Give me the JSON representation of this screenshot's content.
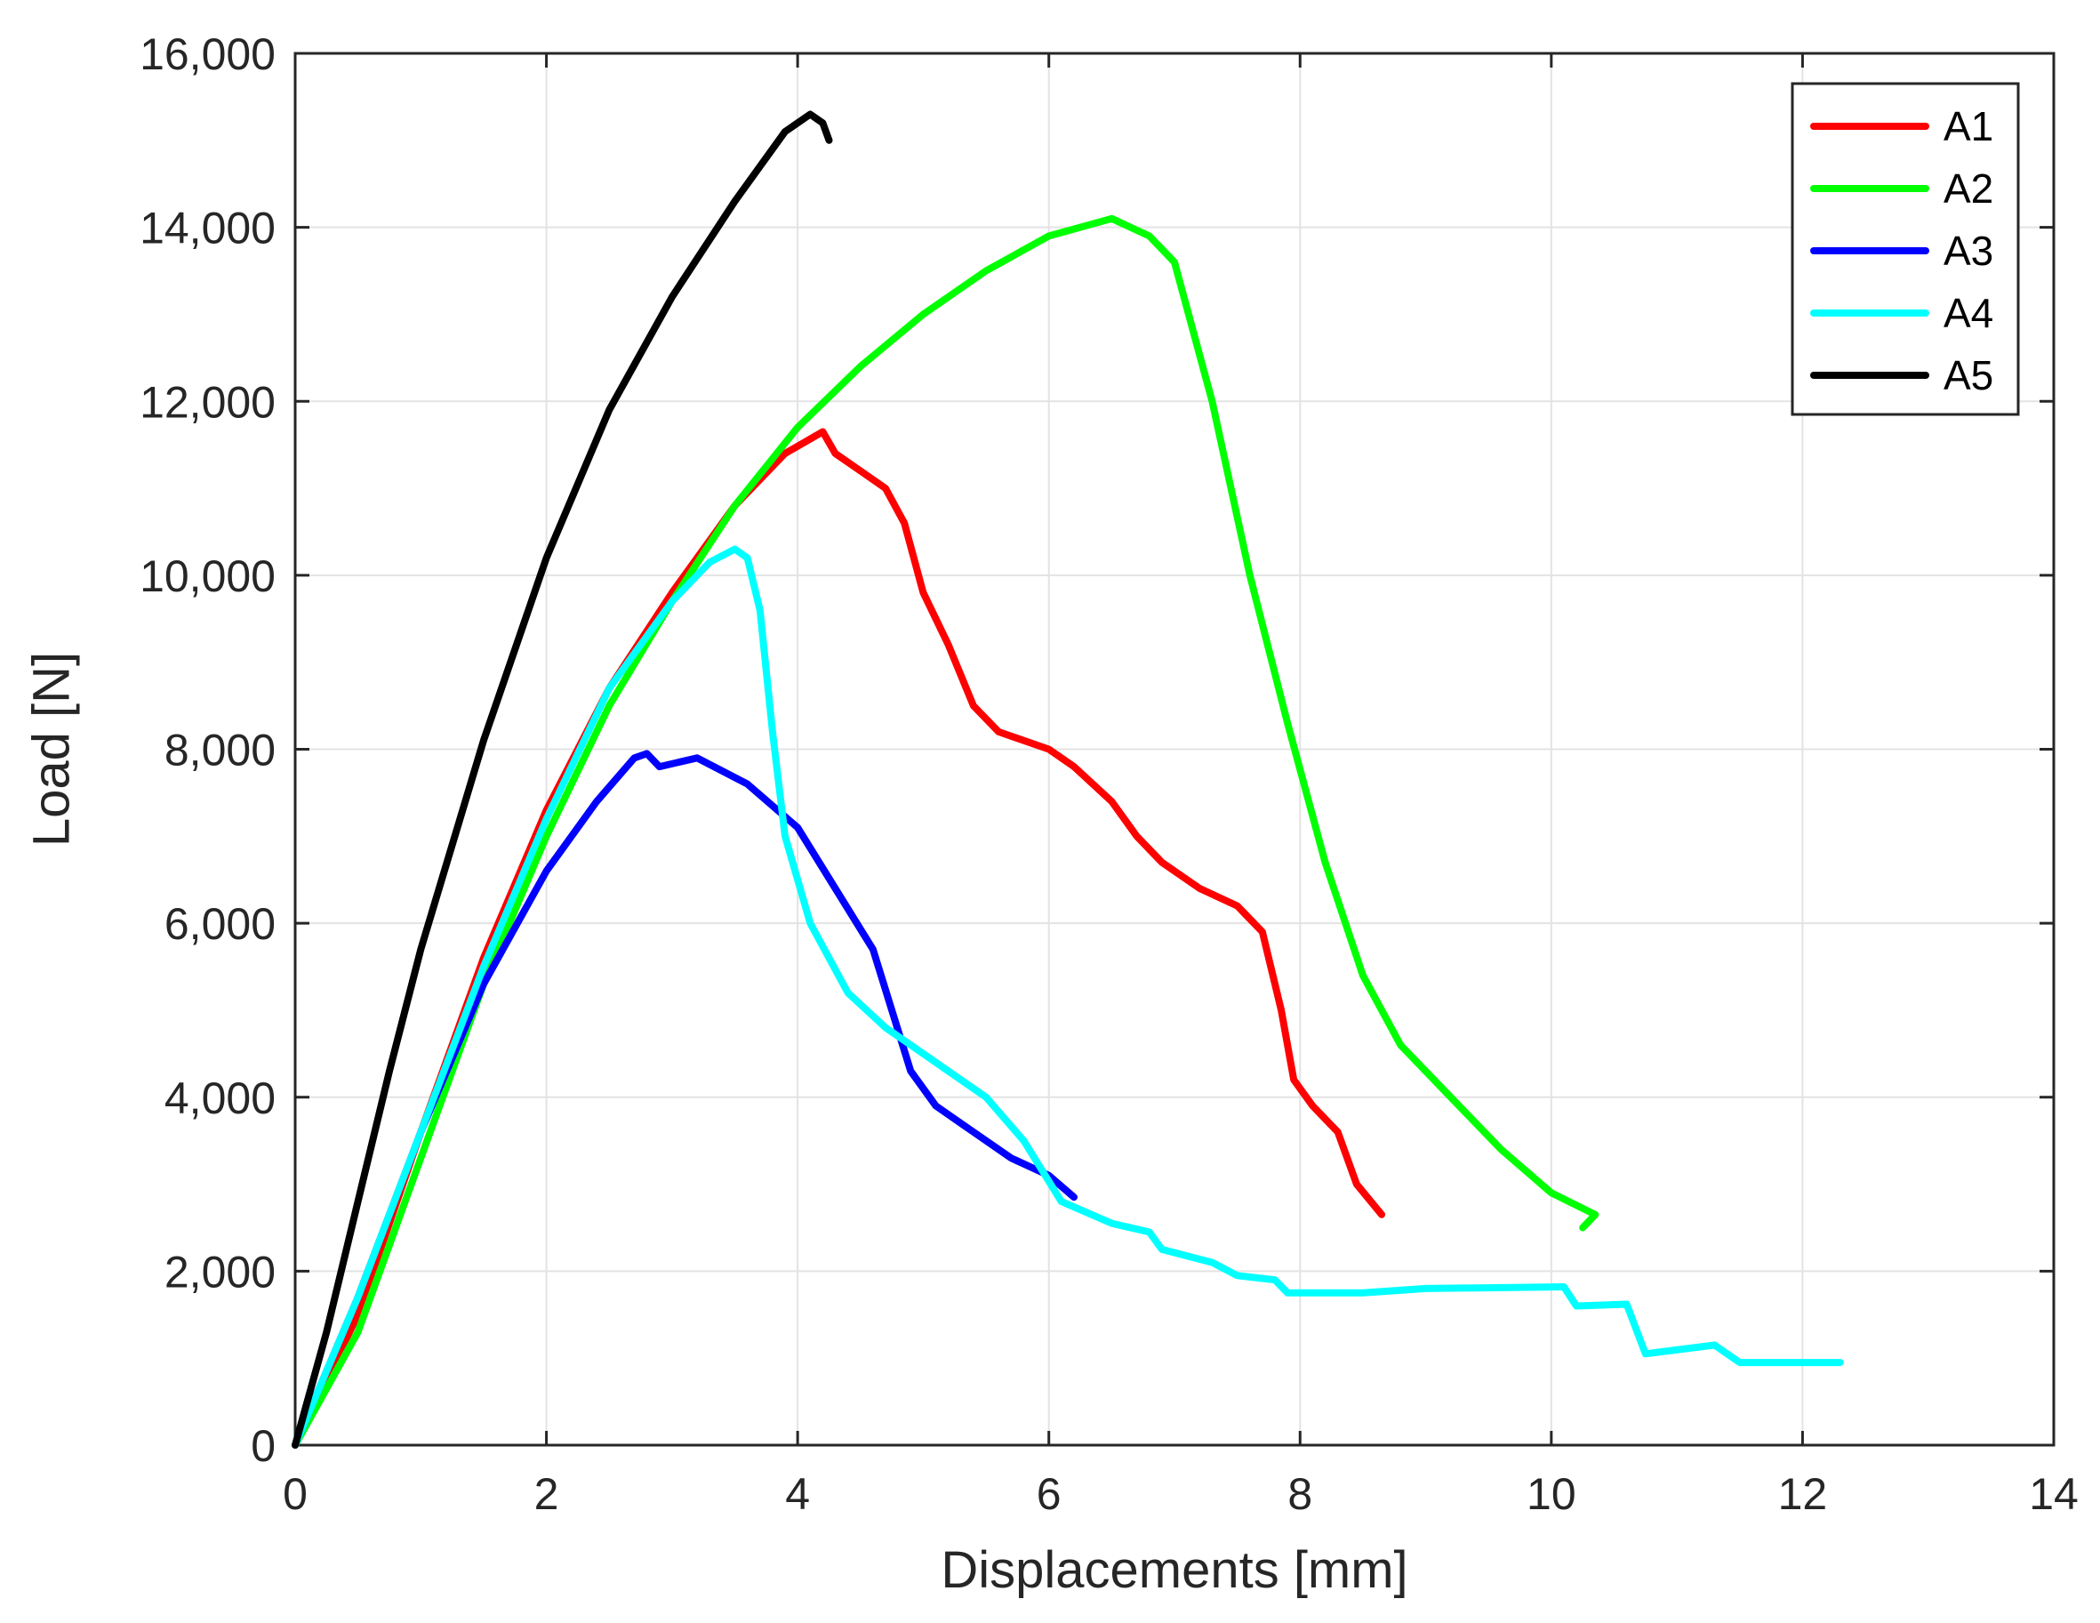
{
  "chart_data": {
    "type": "line",
    "title": "",
    "xlabel": "Displacements [mm]",
    "ylabel": "Load [N]",
    "xlim": [
      0,
      14
    ],
    "ylim": [
      0,
      16000
    ],
    "x_ticks": [
      0,
      2,
      4,
      6,
      8,
      10,
      12,
      14
    ],
    "y_ticks": [
      0,
      2000,
      4000,
      6000,
      8000,
      10000,
      12000,
      14000,
      16000
    ],
    "x_tick_labels": [
      "0",
      "2",
      "4",
      "6",
      "8",
      "10",
      "12",
      "14"
    ],
    "y_tick_labels": [
      "0",
      "2,000",
      "4,000",
      "6,000",
      "8,000",
      "10,000",
      "12,000",
      "14,000",
      "16,000"
    ],
    "grid": true,
    "legend_position": "top-right",
    "series": [
      {
        "name": "A1",
        "color": "#ff0000",
        "points": [
          [
            0,
            0
          ],
          [
            0.5,
            1500
          ],
          [
            1,
            3600
          ],
          [
            1.5,
            5600
          ],
          [
            2,
            7300
          ],
          [
            2.5,
            8700
          ],
          [
            3,
            9800
          ],
          [
            3.5,
            10800
          ],
          [
            3.9,
            11400
          ],
          [
            4.2,
            11650
          ],
          [
            4.3,
            11400
          ],
          [
            4.5,
            11200
          ],
          [
            4.7,
            11000
          ],
          [
            4.85,
            10600
          ],
          [
            5,
            9800
          ],
          [
            5.2,
            9200
          ],
          [
            5.4,
            8500
          ],
          [
            5.6,
            8200
          ],
          [
            6,
            8000
          ],
          [
            6.2,
            7800
          ],
          [
            6.5,
            7400
          ],
          [
            6.7,
            7000
          ],
          [
            6.9,
            6700
          ],
          [
            7.2,
            6400
          ],
          [
            7.5,
            6200
          ],
          [
            7.7,
            5900
          ],
          [
            7.85,
            5000
          ],
          [
            7.95,
            4200
          ],
          [
            8.1,
            3900
          ],
          [
            8.3,
            3600
          ],
          [
            8.45,
            3000
          ],
          [
            8.65,
            2650
          ]
        ]
      },
      {
        "name": "A2",
        "color": "#00ff00",
        "points": [
          [
            0,
            0
          ],
          [
            0.5,
            1300
          ],
          [
            1,
            3300
          ],
          [
            1.5,
            5300
          ],
          [
            2,
            7000
          ],
          [
            2.5,
            8500
          ],
          [
            3,
            9700
          ],
          [
            3.5,
            10800
          ],
          [
            4,
            11700
          ],
          [
            4.5,
            12400
          ],
          [
            5,
            13000
          ],
          [
            5.5,
            13500
          ],
          [
            6,
            13900
          ],
          [
            6.5,
            14100
          ],
          [
            6.8,
            13900
          ],
          [
            7,
            13600
          ],
          [
            7.3,
            12000
          ],
          [
            7.6,
            10000
          ],
          [
            7.9,
            8300
          ],
          [
            8.2,
            6700
          ],
          [
            8.5,
            5400
          ],
          [
            8.8,
            4600
          ],
          [
            9.2,
            4000
          ],
          [
            9.6,
            3400
          ],
          [
            10,
            2900
          ],
          [
            10.35,
            2650
          ],
          [
            10.25,
            2500
          ]
        ]
      },
      {
        "name": "A3",
        "color": "#0000ff",
        "points": [
          [
            0,
            0
          ],
          [
            0.5,
            1700
          ],
          [
            1,
            3600
          ],
          [
            1.5,
            5300
          ],
          [
            2,
            6600
          ],
          [
            2.4,
            7400
          ],
          [
            2.7,
            7900
          ],
          [
            2.8,
            7950
          ],
          [
            2.9,
            7800
          ],
          [
            3.2,
            7900
          ],
          [
            3.6,
            7600
          ],
          [
            4,
            7100
          ],
          [
            4.3,
            6400
          ],
          [
            4.6,
            5700
          ],
          [
            4.75,
            5000
          ],
          [
            4.9,
            4300
          ],
          [
            5.1,
            3900
          ],
          [
            5.4,
            3600
          ],
          [
            5.7,
            3300
          ],
          [
            6,
            3100
          ],
          [
            6.2,
            2850
          ]
        ]
      },
      {
        "name": "A4",
        "color": "#00ffff",
        "points": [
          [
            0,
            0
          ],
          [
            0.5,
            1700
          ],
          [
            1,
            3600
          ],
          [
            1.5,
            5500
          ],
          [
            2,
            7200
          ],
          [
            2.5,
            8700
          ],
          [
            3,
            9700
          ],
          [
            3.3,
            10150
          ],
          [
            3.5,
            10300
          ],
          [
            3.6,
            10200
          ],
          [
            3.7,
            9600
          ],
          [
            3.8,
            8200
          ],
          [
            3.9,
            7000
          ],
          [
            4.1,
            6000
          ],
          [
            4.4,
            5200
          ],
          [
            4.7,
            4800
          ],
          [
            5,
            4500
          ],
          [
            5.5,
            4000
          ],
          [
            5.8,
            3500
          ],
          [
            6.1,
            2800
          ],
          [
            6.5,
            2550
          ],
          [
            6.8,
            2450
          ],
          [
            6.9,
            2250
          ],
          [
            7.3,
            2100
          ],
          [
            7.5,
            1950
          ],
          [
            7.8,
            1900
          ],
          [
            7.9,
            1750
          ],
          [
            8.5,
            1750
          ],
          [
            9,
            1800
          ],
          [
            10.1,
            1820
          ],
          [
            10.2,
            1600
          ],
          [
            10.6,
            1620
          ],
          [
            10.75,
            1050
          ],
          [
            11.3,
            1150
          ],
          [
            11.5,
            950
          ],
          [
            12.3,
            950
          ]
        ]
      },
      {
        "name": "A5",
        "color": "#000000",
        "points": [
          [
            0,
            0
          ],
          [
            0.25,
            1300
          ],
          [
            0.5,
            2800
          ],
          [
            0.75,
            4300
          ],
          [
            1,
            5700
          ],
          [
            1.5,
            8100
          ],
          [
            2,
            10200
          ],
          [
            2.5,
            11900
          ],
          [
            3,
            13200
          ],
          [
            3.5,
            14300
          ],
          [
            3.9,
            15100
          ],
          [
            4.1,
            15300
          ],
          [
            4.2,
            15200
          ],
          [
            4.25,
            15000
          ]
        ]
      }
    ]
  }
}
